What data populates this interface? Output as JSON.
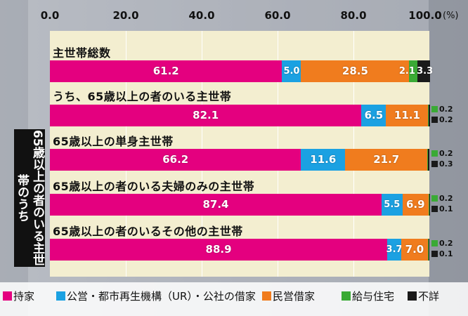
{
  "chart_data": {
    "type": "bar",
    "orientation": "horizontal",
    "stacked": true,
    "xlim": [
      0,
      100
    ],
    "ticks": [
      "0.0",
      "20.0",
      "40.0",
      "60.0",
      "80.0",
      "100.0"
    ],
    "unit": "(%)",
    "side_label": "65歳以上の者のいる主世帯のうち",
    "categories": [
      "主世帯総数",
      "うち、65歳以上の者のいる主世帯",
      "65歳以上の単身主世帯",
      "65歳以上の者のいる夫婦のみの主世帯",
      "65歳以上の者のいるその他の主世帯"
    ],
    "series": [
      {
        "name": "持家",
        "color": "#e4007f",
        "values": [
          61.2,
          82.1,
          66.2,
          87.4,
          88.9
        ],
        "labels": [
          "61.2",
          "82.1",
          "66.2",
          "87.4",
          "88.9"
        ]
      },
      {
        "name": "公営・都市再生機構（UR）・公社の借家",
        "color": "#1ba1e2",
        "values": [
          5.0,
          6.5,
          11.6,
          5.5,
          3.7
        ],
        "labels": [
          "5.0",
          "6.5",
          "11.6",
          "5.5",
          "3.7"
        ]
      },
      {
        "name": "民営借家",
        "color": "#f07c1e",
        "values": [
          28.5,
          11.1,
          21.7,
          6.9,
          7.0
        ],
        "labels": [
          "28.5",
          "11.1",
          "21.7",
          "6.9",
          "7.0"
        ]
      },
      {
        "name": "給与住宅",
        "color": "#3aaa35",
        "values": [
          2.1,
          0.2,
          0.2,
          0.2,
          0.2
        ],
        "labels": [
          "2.1",
          "0.2",
          "0.2",
          "0.2",
          "0.2"
        ]
      },
      {
        "name": "不詳",
        "color": "#1a1a1a",
        "values": [
          3.3,
          0.2,
          0.3,
          0.1,
          0.1
        ],
        "labels": [
          "3.3",
          "0.2",
          "0.3",
          "0.1",
          "0.1"
        ]
      }
    ]
  },
  "legend": {
    "items": [
      "持家",
      "公営・都市再生機構（UR）・公社の借家",
      "民営借家",
      "給与住宅",
      "不詳"
    ]
  }
}
